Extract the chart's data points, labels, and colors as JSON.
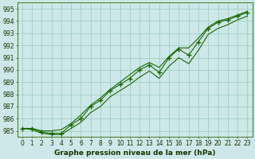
{
  "hours": [
    0,
    1,
    2,
    3,
    4,
    5,
    6,
    7,
    8,
    9,
    10,
    11,
    12,
    13,
    14,
    15,
    16,
    17,
    18,
    19,
    20,
    21,
    22,
    23
  ],
  "line_main": [
    985.2,
    985.2,
    984.9,
    984.8,
    984.8,
    985.5,
    986.0,
    987.0,
    987.5,
    988.3,
    988.8,
    989.3,
    990.0,
    990.4,
    989.8,
    991.0,
    991.7,
    991.2,
    992.3,
    993.4,
    993.9,
    994.1,
    994.4,
    994.7
  ],
  "line_smooth_top": [
    985.2,
    985.2,
    985.0,
    985.0,
    985.1,
    985.6,
    986.3,
    987.1,
    987.7,
    988.4,
    989.0,
    989.6,
    990.2,
    990.6,
    990.2,
    991.1,
    991.8,
    991.8,
    992.6,
    993.5,
    994.0,
    994.2,
    994.5,
    994.8
  ],
  "line_smooth_bot": [
    985.2,
    985.1,
    984.8,
    984.7,
    984.7,
    985.2,
    985.7,
    986.5,
    987.0,
    987.8,
    988.3,
    988.8,
    989.4,
    989.9,
    989.3,
    990.3,
    991.0,
    990.5,
    991.6,
    992.9,
    993.4,
    993.7,
    994.1,
    994.4
  ],
  "ylim": [
    984.5,
    995.5
  ],
  "xlim": [
    -0.5,
    23.5
  ],
  "yticks": [
    985,
    986,
    987,
    988,
    989,
    990,
    991,
    992,
    993,
    994,
    995
  ],
  "xticks": [
    0,
    1,
    2,
    3,
    4,
    5,
    6,
    7,
    8,
    9,
    10,
    11,
    12,
    13,
    14,
    15,
    16,
    17,
    18,
    19,
    20,
    21,
    22,
    23
  ],
  "xlabel": "Graphe pression niveau de la mer (hPa)",
  "line_color": "#1a6600",
  "bg_color": "#cce8e8",
  "grid_color": "#99ccbb",
  "marker": "+",
  "marker_size": 4,
  "marker_edge_width": 1.0,
  "line_width": 0.8,
  "tick_fontsize": 5.5,
  "xlabel_fontsize": 6.5
}
